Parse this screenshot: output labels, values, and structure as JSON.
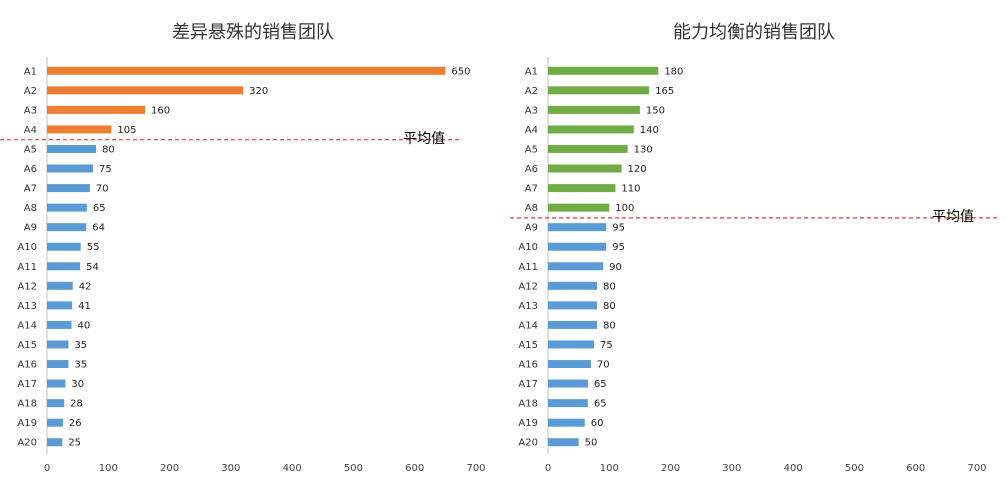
{
  "chart_data": [
    {
      "type": "bar",
      "orientation": "horizontal",
      "title": "差异悬殊的销售团队",
      "categories": [
        "A1",
        "A2",
        "A3",
        "A4",
        "A5",
        "A6",
        "A7",
        "A8",
        "A9",
        "A10",
        "A11",
        "A12",
        "A13",
        "A14",
        "A15",
        "A16",
        "A17",
        "A18",
        "A19",
        "A20"
      ],
      "values": [
        650,
        320,
        160,
        105,
        80,
        75,
        70,
        65,
        64,
        55,
        54,
        42,
        41,
        40,
        35,
        35,
        30,
        28,
        26,
        25
      ],
      "above_avg_count": 4,
      "xlim": [
        0,
        700
      ],
      "xticks": [
        0,
        100,
        200,
        300,
        400,
        500,
        600,
        700
      ],
      "avg_label": "平均值",
      "xlabel": "",
      "ylabel": ""
    },
    {
      "type": "bar",
      "orientation": "horizontal",
      "title": "能力均衡的销售团队",
      "categories": [
        "A1",
        "A2",
        "A3",
        "A4",
        "A5",
        "A6",
        "A7",
        "A8",
        "A9",
        "A10",
        "A11",
        "A12",
        "A13",
        "A14",
        "A15",
        "A16",
        "A17",
        "A18",
        "A19",
        "A20"
      ],
      "values": [
        180,
        165,
        150,
        140,
        130,
        120,
        110,
        100,
        95,
        95,
        90,
        80,
        80,
        80,
        75,
        70,
        65,
        65,
        60,
        50
      ],
      "above_avg_count": 8,
      "xlim": [
        0,
        700
      ],
      "xticks": [
        0,
        100,
        200,
        300,
        400,
        500,
        600,
        700
      ],
      "avg_label": "平均值",
      "xlabel": "",
      "ylabel": ""
    }
  ],
  "colors": {
    "left_highlight": "#ED7D31",
    "right_highlight": "#70AD47",
    "base": "#5B9BD5",
    "avg_line": "#E0393E",
    "axis": "#BFBFBF"
  }
}
